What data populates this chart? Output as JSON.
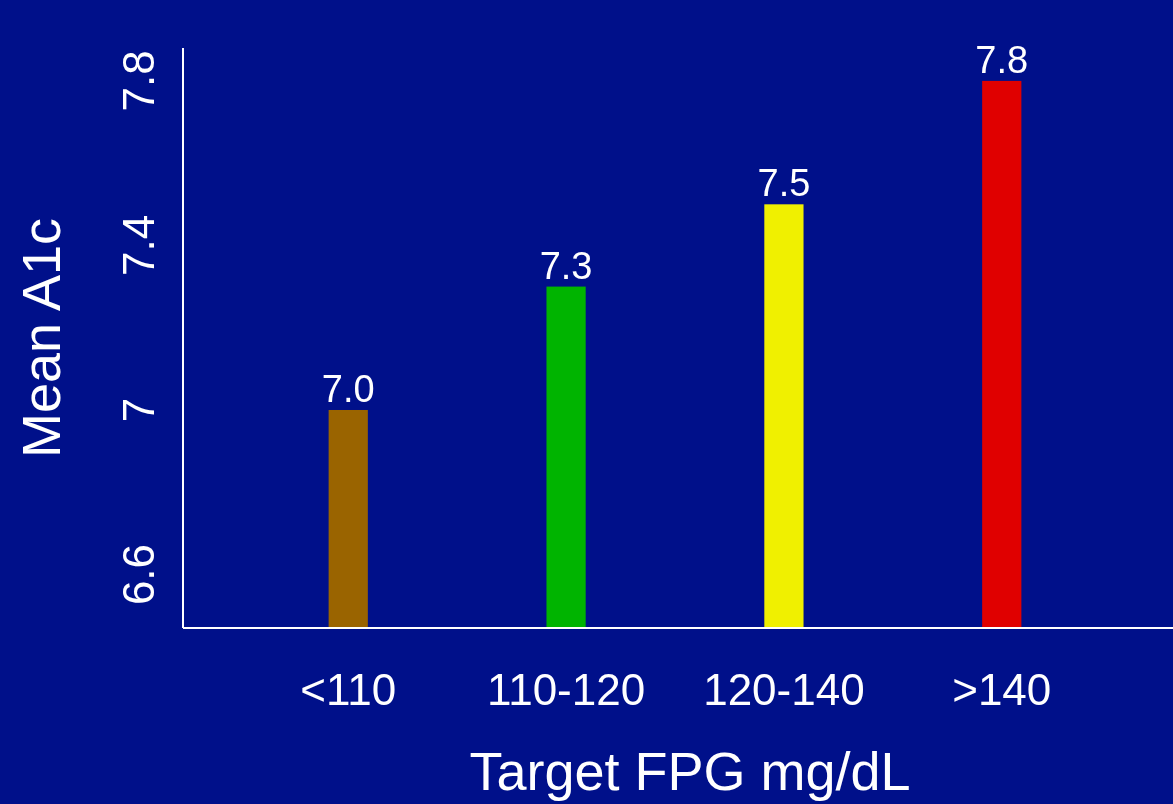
{
  "chart_data": {
    "type": "bar",
    "xlabel": "Target FPG mg/dL",
    "ylabel": "Mean A1c",
    "categories": [
      "<110",
      "110-120",
      "120-140",
      ">140"
    ],
    "values": [
      7.0,
      7.3,
      7.5,
      7.8
    ],
    "value_labels": [
      "7.0",
      "7.3",
      "7.5",
      "7.8"
    ],
    "colors": [
      "#9a6400",
      "#00b400",
      "#f0f000",
      "#e00000"
    ],
    "ylim": [
      6.47,
      7.88
    ],
    "yticks": [
      6.6,
      {
        "value": 7,
        "label": "7"
      },
      7.4,
      7.8
    ],
    "grid": false
  }
}
